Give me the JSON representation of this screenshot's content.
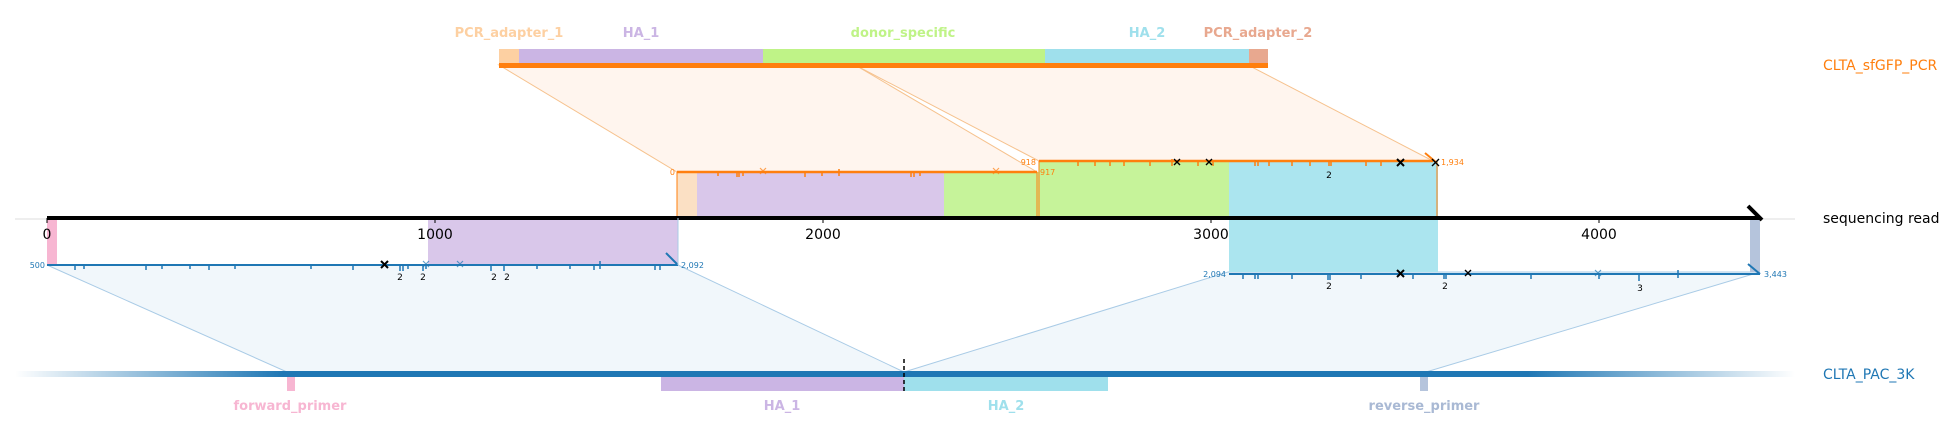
{
  "reads": {
    "donor": "CLTA_sfGFP_PCR",
    "sequencing": "sequencing read",
    "target": "CLTA_PAC_3K"
  },
  "donor_features": {
    "pcr1": "PCR_adapter_1",
    "ha1": "HA_1",
    "donor_specific": "donor_specific",
    "ha2": "HA_2",
    "pcr2": "PCR_adapter_2"
  },
  "target_features": {
    "forward_primer": "forward_primer",
    "ha1": "HA_1",
    "ha2": "HA_2",
    "reverse_primer": "reverse_primer"
  },
  "axis": {
    "ticks": [
      "0",
      "1000",
      "2000",
      "3000",
      "4000"
    ]
  },
  "alignments": {
    "donor_left_start": "0",
    "donor_left_end": "917",
    "donor_right_start": "918",
    "donor_right_end": "1,934",
    "target_left_start": "500",
    "target_left_end": "2,092",
    "target_right_start": "2,094",
    "target_right_end": "3,443"
  },
  "count_labels": [
    "2",
    "2",
    "2",
    "2",
    "2",
    "2",
    "2",
    "3"
  ],
  "colors": {
    "donor": "#ff7f0e",
    "target": "#1f77b4",
    "pcr_adapter_1": "#fdd0a2",
    "ha_1": "#cbb5e4",
    "donor_specific": "#bff387",
    "ha_2": "#9fe0ec",
    "pcr_adapter_2": "#e8a88f",
    "forward_primer": "#f7b6d2",
    "reverse_primer": "#b5c4dc"
  }
}
